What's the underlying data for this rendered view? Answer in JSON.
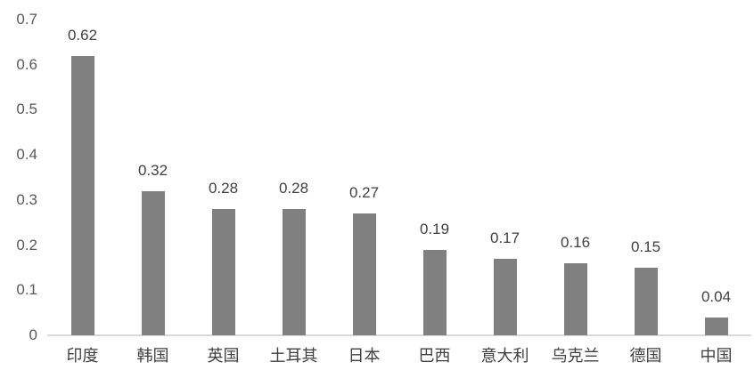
{
  "chart_data": {
    "type": "bar",
    "title": "",
    "xlabel": "",
    "ylabel": "",
    "categories": [
      "印度",
      "韩国",
      "英国",
      "土耳其",
      "日本",
      "巴西",
      "意大利",
      "乌克兰",
      "德国",
      "中国"
    ],
    "values": [
      0.62,
      0.32,
      0.28,
      0.28,
      0.27,
      0.19,
      0.17,
      0.16,
      0.15,
      0.04
    ],
    "data_labels": [
      "0.62",
      "0.32",
      "0.28",
      "0.28",
      "0.27",
      "0.19",
      "0.17",
      "0.16",
      "0.15",
      "0.04"
    ],
    "ylim": [
      0,
      0.7
    ],
    "ytick_labels": [
      "0",
      "0.1",
      "0.2",
      "0.3",
      "0.4",
      "0.5",
      "0.6",
      "0.7"
    ],
    "grid": false,
    "legend": false,
    "colors": {
      "bar_fill": "#808080",
      "data_label_text": "#404040",
      "tick_text": "#595959",
      "axis_line": "#d9d9d9",
      "background": "#ffffff"
    }
  }
}
